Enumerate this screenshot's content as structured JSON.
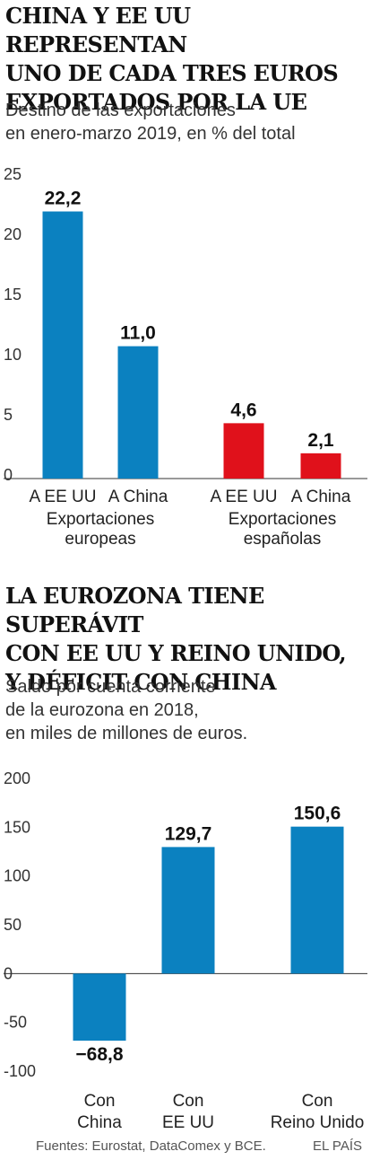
{
  "chart_data": [
    {
      "type": "bar",
      "title": "CHINA Y EE UU REPRESENTAN\nUNO DE CADA TRES EUROS\nEXPORTADOS POR LA UE",
      "subtitle": "Destino de las exportaciones\nen enero-marzo 2019, en % del total",
      "categories": [
        "A EE UU",
        "A China",
        "A EE UU",
        "A China"
      ],
      "groups": [
        {
          "label": [
            "Exportaciones",
            "europeas"
          ],
          "indices": [
            0,
            1
          ]
        },
        {
          "label": [
            "Exportaciones",
            "españolas"
          ],
          "indices": [
            2,
            3
          ]
        }
      ],
      "values": [
        22.2,
        11.0,
        4.6,
        2.1
      ],
      "value_labels": [
        "22,2",
        "11,0",
        "4,6",
        "2,1"
      ],
      "colors": [
        "#0b81c0",
        "#0b81c0",
        "#e0111b",
        "#e0111b"
      ],
      "ylim": [
        0,
        25
      ],
      "yticks": [
        0,
        5,
        10,
        15,
        20,
        25
      ],
      "grid": false
    },
    {
      "type": "bar",
      "title": "LA EUROZONA TIENE SUPERÁVIT\nCON EE UU Y  REINO UNIDO,\nY DÉFICIT CON CHINA",
      "subtitle": "Saldo por cuenta corriente\nde la eurozona en 2018,\nen miles de millones de euros.",
      "categories": [
        [
          "Con",
          "China"
        ],
        [
          "Con",
          "EE UU"
        ],
        [
          "Con",
          "Reino Unido"
        ]
      ],
      "values": [
        -68.8,
        129.7,
        150.6
      ],
      "value_labels": [
        "−68,8",
        "129,7",
        "150,6"
      ],
      "colors": [
        "#0b81c0",
        "#0b81c0",
        "#0b81c0"
      ],
      "ylim": [
        -100,
        200
      ],
      "yticks": [
        -100,
        -50,
        0,
        50,
        100,
        150,
        200
      ],
      "ytick_labels": [
        "-100",
        "-50",
        "0",
        "50",
        "100",
        "150",
        "200"
      ],
      "grid": false
    }
  ],
  "footer": {
    "sources": "Fuentes: Eurostat, DataComex y BCE.",
    "brand": "EL PAÍS"
  }
}
